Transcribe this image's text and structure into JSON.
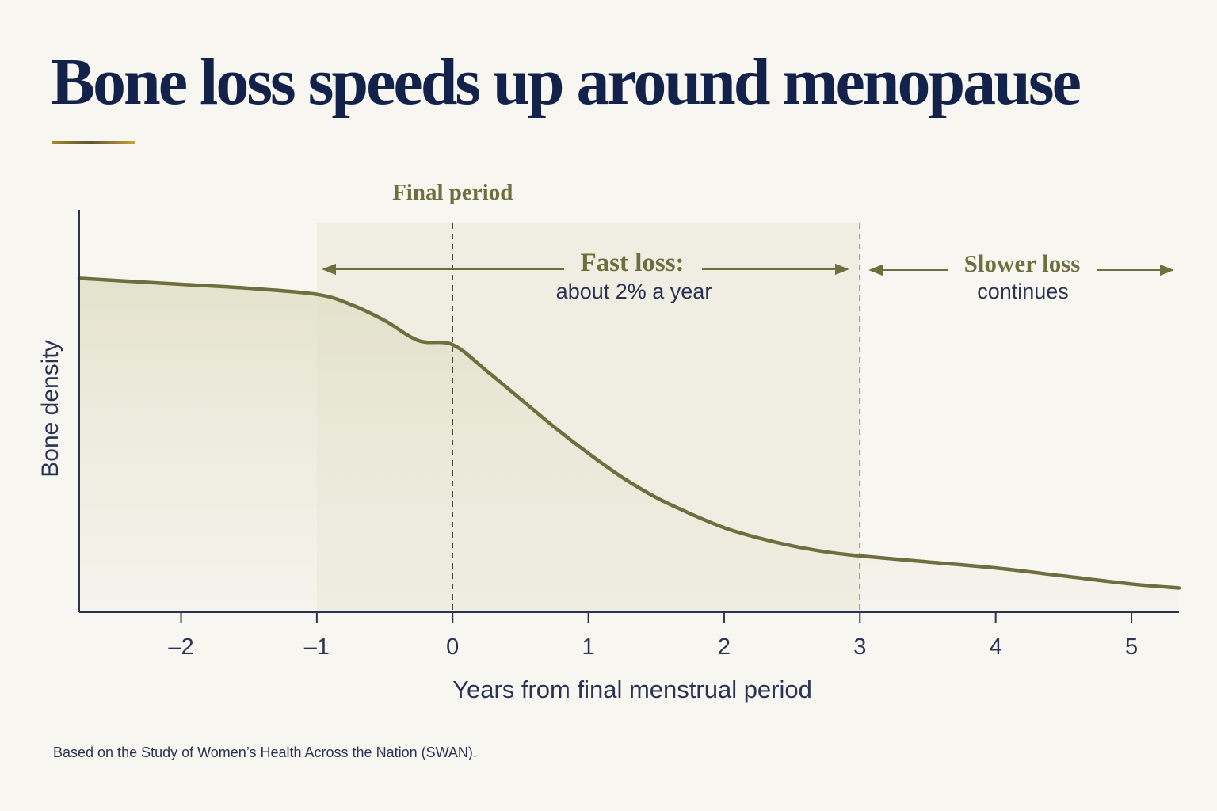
{
  "title": "Bone loss speeds up around menopause",
  "footnote": "Based on the Study of Women’s Health Across the Nation (SWAN).",
  "colors": {
    "title": "#13224a",
    "accent": "#6f6e3f",
    "axis": "#2a3352",
    "band_fill": "#eeede0",
    "background": "#f8f6f0"
  },
  "chart_data": {
    "type": "area",
    "xlabel": "Years from final menstrual period",
    "ylabel": "Bone density",
    "xlim": [
      -2.75,
      5.35
    ],
    "ylim": [
      0,
      1
    ],
    "xticks": [
      -2,
      -1,
      0,
      1,
      2,
      3,
      4,
      5
    ],
    "xtick_labels": [
      "–2",
      "–1",
      "0",
      "1",
      "2",
      "3",
      "4",
      "5"
    ],
    "grid": false,
    "series": [
      {
        "x": [
          -2.75,
          -2.0,
          -1.5,
          -1.0,
          -0.75,
          -0.5,
          -0.25,
          0.0,
          0.25,
          0.5,
          0.75,
          1.0,
          1.25,
          1.5,
          1.75,
          2.0,
          2.25,
          2.5,
          2.75,
          3.0,
          3.5,
          4.0,
          4.5,
          5.0,
          5.35
        ],
        "y": [
          0.83,
          0.815,
          0.805,
          0.79,
          0.765,
          0.725,
          0.675,
          0.665,
          0.6,
          0.53,
          0.46,
          0.395,
          0.335,
          0.285,
          0.245,
          0.21,
          0.185,
          0.165,
          0.15,
          0.14,
          0.125,
          0.11,
          0.09,
          0.07,
          0.06
        ]
      }
    ],
    "shaded_region": {
      "x_start": -1,
      "x_end": 3
    },
    "reference_lines": [
      {
        "x": 0,
        "label": "Final period"
      },
      {
        "x": 3,
        "label": ""
      }
    ],
    "annotations": [
      {
        "id": "fast",
        "heading": "Fast loss:",
        "detail": "about 2% a year"
      },
      {
        "id": "slow",
        "heading": "Slower loss",
        "detail": "continues"
      }
    ]
  }
}
